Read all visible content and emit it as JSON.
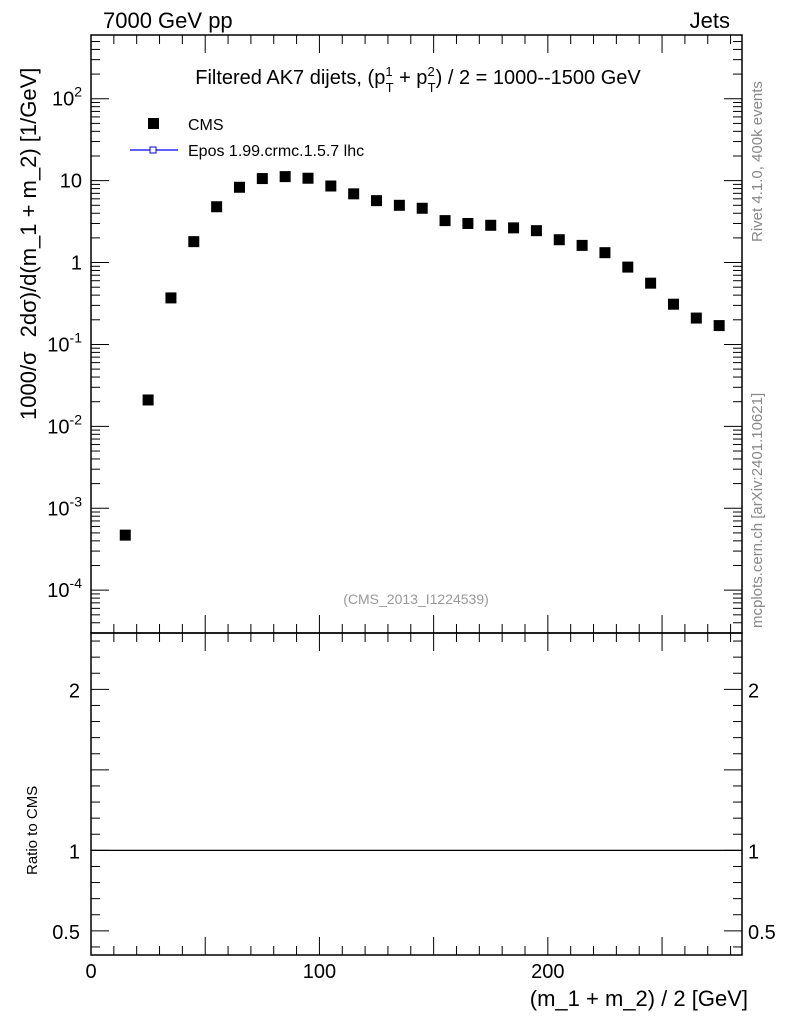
{
  "header": {
    "left": "7000 GeV pp",
    "right": "Jets"
  },
  "side_labels": {
    "rivet": "Rivet 4.1.0,  400k events",
    "mcplots": "mcplots.cern.ch [arXiv:2401.10621]"
  },
  "chart_data": {
    "type": "scatter",
    "title_parts": {
      "prefix": "Filtered AK7 dijets, (p",
      "sup1": "1",
      "sub1": "T",
      "mid": " + p",
      "sup2": "2",
      "sub2": "T",
      "suffix": ") / 2 = 1000--1500 GeV"
    },
    "analysis_id": "(CMS_2013_I1224539)",
    "ylabel_prefix": "1000/σ",
    "ylabel_main": "2dσ)/d(m_1 + m_2) [1/GeV]",
    "xlabel": "(m_1 + m_2) / 2 [GeV]",
    "ratio_ylabel": "Ratio to CMS",
    "xlim": [
      0,
      285
    ],
    "ylim": [
      3e-05,
      600
    ],
    "ylog": true,
    "ratio_ylim": [
      0.35,
      2.35
    ],
    "x_ticks": [
      "0",
      "100",
      "200"
    ],
    "x_tick_values": [
      0,
      100,
      200
    ],
    "y_ticks": [
      {
        "value": 0.0001,
        "base": "10",
        "exp": "-4"
      },
      {
        "value": 0.001,
        "base": "10",
        "exp": "-3"
      },
      {
        "value": 0.01,
        "base": "10",
        "exp": "-2"
      },
      {
        "value": 0.1,
        "base": "10",
        "exp": "-1"
      },
      {
        "value": 1,
        "base": "1",
        "exp": ""
      },
      {
        "value": 10,
        "base": "10",
        "exp": ""
      },
      {
        "value": 100,
        "base": "10",
        "exp": "2"
      }
    ],
    "ratio_ticks": [
      {
        "value": 0.5,
        "label": "0.5"
      },
      {
        "value": 1,
        "label": "1"
      },
      {
        "value": 2,
        "label": "2"
      }
    ],
    "legend": [
      {
        "name": "CMS",
        "marker": "square",
        "color": "#000000"
      },
      {
        "name": "Epos 1.99.crmc.1.5.7 lhc",
        "marker": "line",
        "color": "#0000ff"
      }
    ],
    "legend_position": "top-left",
    "series": [
      {
        "name": "CMS",
        "x": [
          15,
          25,
          35,
          45,
          55,
          65,
          75,
          85,
          95,
          105,
          115,
          125,
          135,
          145,
          155,
          165,
          175,
          185,
          195,
          205,
          215,
          225,
          235,
          245,
          255,
          265,
          275
        ],
        "y": [
          0.00047,
          0.021,
          0.37,
          1.8,
          4.8,
          8.3,
          10.6,
          11.2,
          10.7,
          8.6,
          6.9,
          5.7,
          5.0,
          4.6,
          3.25,
          3.0,
          2.85,
          2.65,
          2.45,
          1.9,
          1.62,
          1.32,
          0.88,
          0.56,
          0.31,
          0.21,
          0.17
        ]
      }
    ],
    "reference_line": 1,
    "colors": {
      "data": "#000000",
      "mc": "#0000ff",
      "annotation": "#999999",
      "side": "#888888"
    }
  }
}
